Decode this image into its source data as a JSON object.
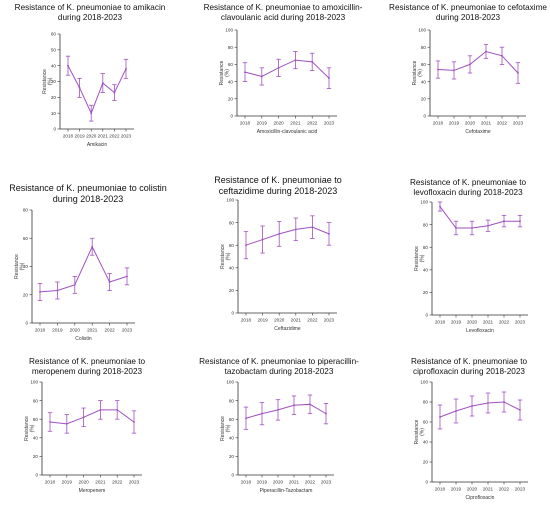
{
  "figure": {
    "colors": {
      "series": "#a050c0",
      "axis": "#333333",
      "text": "#333333"
    }
  },
  "chart_data": [
    {
      "type": "line",
      "title": "Resistance of K. pneumoniae to amikacin during 2018-2023",
      "xlabel": "Amikacin",
      "ylabel": "Resistance (%)",
      "x": [
        "2018",
        "2019",
        "2020",
        "2021",
        "2022",
        "2023"
      ],
      "values": [
        40,
        26,
        10,
        29,
        23,
        38
      ],
      "errors": [
        6,
        6,
        5,
        6,
        5,
        6
      ],
      "ylim": [
        0,
        60
      ],
      "yticks": [
        0,
        10,
        20,
        30,
        40,
        50,
        60
      ]
    },
    {
      "type": "line",
      "title": "Resistance of K. pneumoniae to amoxicillin-clavoulanic acid during 2018-2023",
      "xlabel": "Amoxicillin-clavoulanic acid",
      "ylabel": "Resistance (%)",
      "x": [
        "2018",
        "2019",
        "2020",
        "2021",
        "2022",
        "2023"
      ],
      "values": [
        51,
        46,
        56,
        65,
        63,
        44
      ],
      "errors": [
        11,
        10,
        10,
        10,
        10,
        12
      ],
      "ylim": [
        0,
        100
      ],
      "yticks": [
        0,
        20,
        40,
        60,
        80,
        100
      ]
    },
    {
      "type": "line",
      "title": "Resistance of K. pneumoniae to cefotaxime during 2018-2023",
      "xlabel": "Cefotaxime",
      "ylabel": "Resistance (%)",
      "x": [
        "2018",
        "2019",
        "2020",
        "2021",
        "2022",
        "2023"
      ],
      "values": [
        54,
        53,
        60,
        75,
        70,
        50
      ],
      "errors": [
        10,
        10,
        10,
        8,
        10,
        12
      ],
      "ylim": [
        0,
        100
      ],
      "yticks": [
        0,
        20,
        40,
        60,
        80,
        100
      ]
    },
    {
      "type": "line",
      "title": "Resistance of K. pneumoniae to colistin during 2018-2023",
      "xlabel": "Colistin",
      "ylabel": "Resistance (%)",
      "x": [
        "2018",
        "2019",
        "2020",
        "2021",
        "2022",
        "2023"
      ],
      "values": [
        22,
        23,
        27,
        54,
        29,
        33
      ],
      "errors": [
        6,
        6,
        6,
        6,
        6,
        6
      ],
      "ylim": [
        0,
        80
      ],
      "yticks": [
        0,
        20,
        40,
        60,
        80
      ]
    },
    {
      "type": "line",
      "title": "Resistance of K. pneumoniae to ceftazidime during 2018-2023",
      "xlabel": "Ceftazidime",
      "ylabel": "Resistance (%)",
      "x": [
        "2018",
        "2019",
        "2020",
        "2021",
        "2022",
        "2023"
      ],
      "values": [
        60,
        65,
        70,
        74,
        76,
        70
      ],
      "errors": [
        12,
        12,
        11,
        10,
        10,
        10
      ],
      "ylim": [
        0,
        100
      ],
      "yticks": [
        0,
        20,
        40,
        60,
        80,
        100
      ]
    },
    {
      "type": "line",
      "title": "Resistance of K. pneumoniae to levofloxacin during 2018-2023",
      "xlabel": "Levofloxacin",
      "ylabel": "Resistance (%)",
      "x": [
        "2018",
        "2019",
        "2020",
        "2021",
        "2022",
        "2023"
      ],
      "values": [
        96,
        77,
        77,
        79,
        83,
        83
      ],
      "errors": [
        4,
        6,
        6,
        5,
        5,
        5
      ],
      "ylim": [
        0,
        100
      ],
      "yticks": [
        0,
        20,
        40,
        60,
        80,
        100
      ]
    },
    {
      "type": "line",
      "title": "Resistance of K. pneumoniae to meropenem during 2018-2023",
      "xlabel": "Meropenem",
      "ylabel": "Resistance (%)",
      "x": [
        "2018",
        "2019",
        "2020",
        "2021",
        "2022",
        "2023"
      ],
      "values": [
        57,
        55,
        62,
        70,
        70,
        57
      ],
      "errors": [
        10,
        10,
        10,
        10,
        10,
        12
      ],
      "ylim": [
        0,
        100
      ],
      "yticks": [
        0,
        20,
        40,
        60,
        80,
        100
      ]
    },
    {
      "type": "line",
      "title": "Resistance of K. pneumoniae to piperacillin-tazobactam during 2018-2023",
      "xlabel": "Piperacillin-Tazobactam",
      "ylabel": "Resistance (%)",
      "x": [
        "2018",
        "2019",
        "2020",
        "2021",
        "2022",
        "2023"
      ],
      "values": [
        61,
        66,
        70,
        75,
        76,
        66
      ],
      "errors": [
        12,
        12,
        11,
        10,
        10,
        11
      ],
      "ylim": [
        0,
        100
      ],
      "yticks": [
        0,
        20,
        40,
        60,
        80,
        100
      ]
    },
    {
      "type": "line",
      "title": "Resistance of K. pneumoniae to ciprofloxacin during 2018-2023",
      "xlabel": "Ciprofloxacin",
      "ylabel": "Resistance (%)",
      "x": [
        "2018",
        "2019",
        "2020",
        "2021",
        "2022",
        "2023"
      ],
      "values": [
        65,
        71,
        76,
        79,
        80,
        72
      ],
      "errors": [
        12,
        12,
        10,
        10,
        10,
        10
      ],
      "ylim": [
        0,
        100
      ],
      "yticks": [
        0,
        20,
        40,
        60,
        80,
        100
      ]
    }
  ]
}
